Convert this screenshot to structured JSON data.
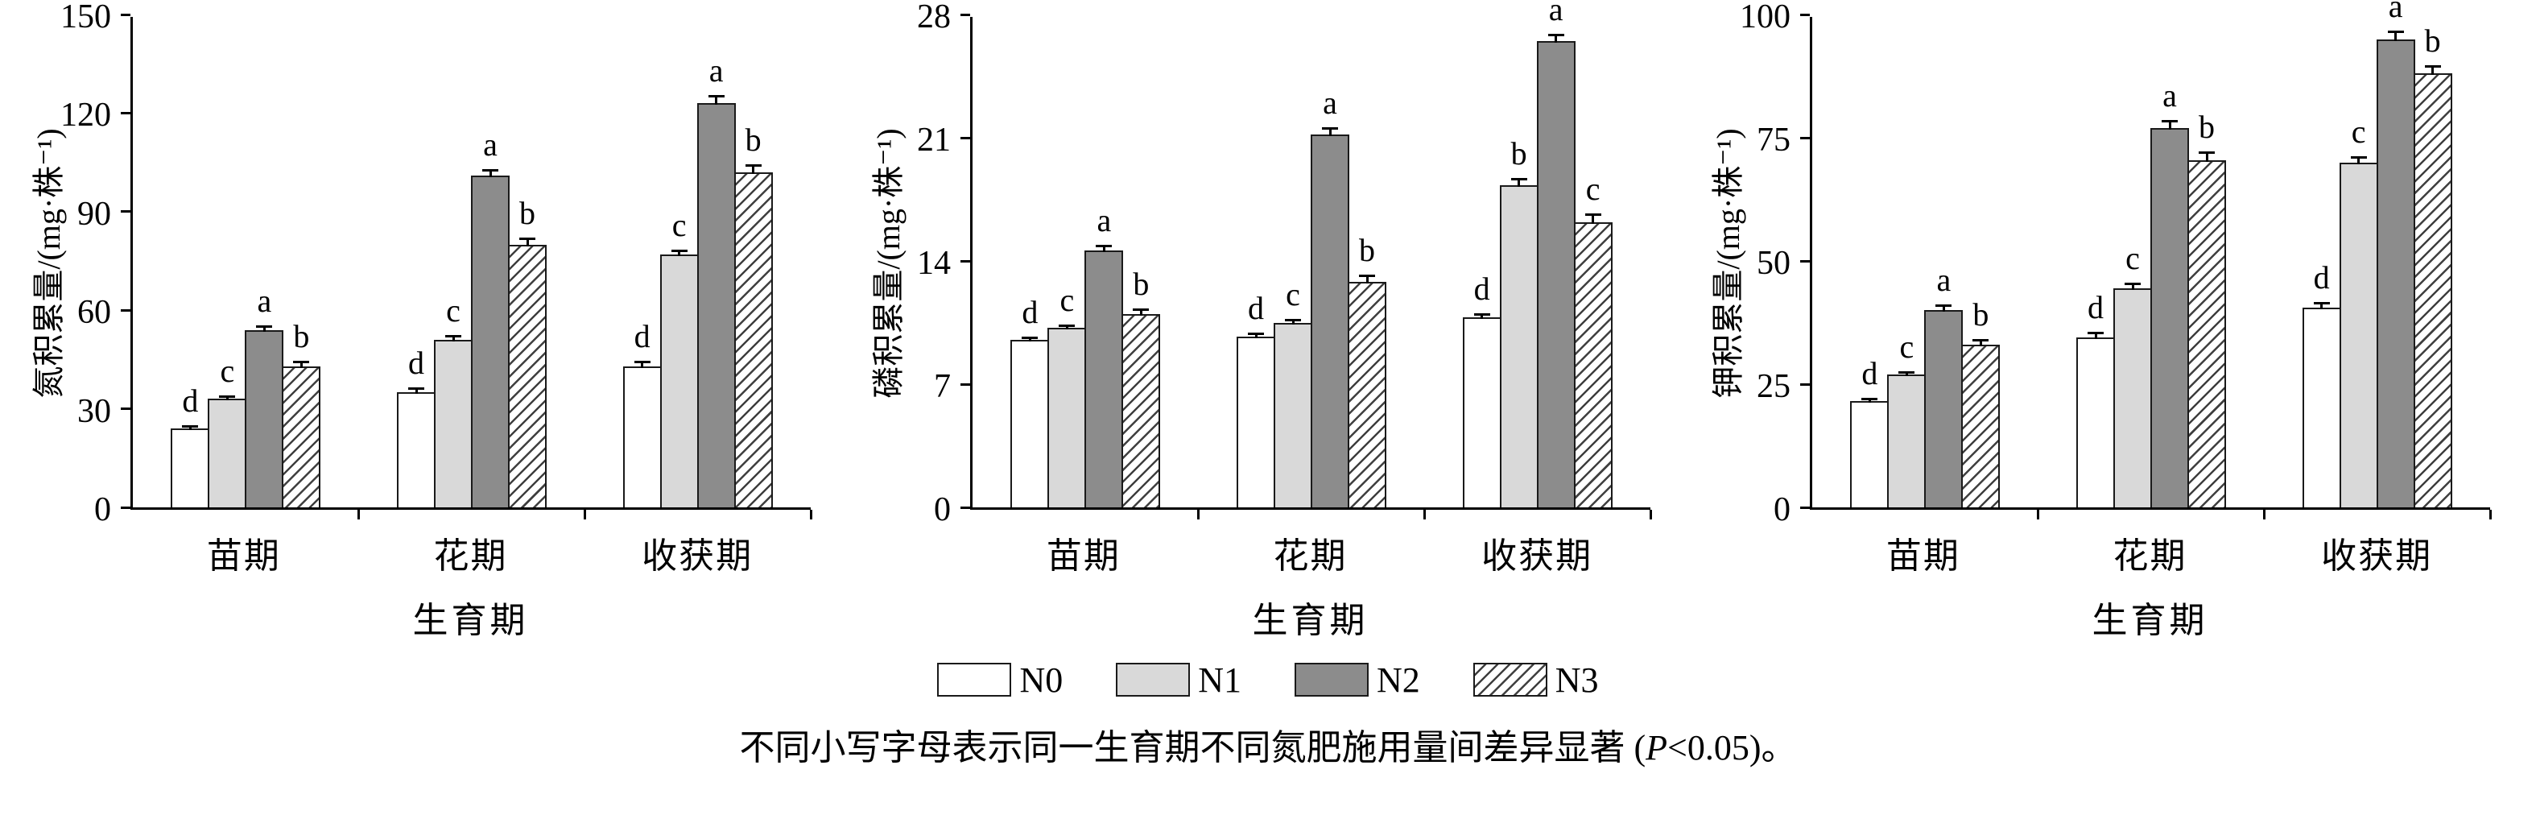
{
  "figure": {
    "caption": {
      "prefix": "不同小写字母表示同一生育期不同氮肥施用量间差异显著 (",
      "italic": "P",
      "suffix": "<0.05)。"
    }
  },
  "legend": {
    "position": "below-figure",
    "items": [
      {
        "label": "N0",
        "fill": "white"
      },
      {
        "label": "N1",
        "fill": "lightgray"
      },
      {
        "label": "N2",
        "fill": "darkgray"
      },
      {
        "label": "N3",
        "fill": "hatch"
      }
    ]
  },
  "colors": {
    "axis": "#000000",
    "bar_border": "#1a1a1a",
    "n0_fill": "#ffffff",
    "n1_fill": "#d9d9d9",
    "n2_fill": "#8c8c8c",
    "hatch_line": "#3f3f3f",
    "background": "#ffffff"
  },
  "chart_data": [
    {
      "type": "bar",
      "title": "",
      "ylabel": "氮积累量/(mg·株⁻¹)",
      "xlabel": "生育期",
      "ylim": [
        0,
        150
      ],
      "yticks": [
        0,
        30,
        60,
        90,
        120,
        150
      ],
      "categories": [
        "苗期",
        "花期",
        "收获期"
      ],
      "grid": false,
      "series": [
        {
          "name": "N0",
          "fill": "white",
          "values": [
            24,
            35,
            43
          ],
          "errors": [
            1.5,
            2.0,
            2.0
          ],
          "sig_letters": [
            "d",
            "d",
            "d"
          ]
        },
        {
          "name": "N1",
          "fill": "lightgray",
          "values": [
            33,
            51,
            77
          ],
          "errors": [
            1.5,
            2.0,
            2.0
          ],
          "sig_letters": [
            "c",
            "c",
            "c"
          ]
        },
        {
          "name": "N2",
          "fill": "darkgray",
          "values": [
            54,
            101,
            123
          ],
          "errors": [
            2.0,
            2.5,
            3.0
          ],
          "sig_letters": [
            "a",
            "a",
            "a"
          ]
        },
        {
          "name": "N3",
          "fill": "hatch",
          "values": [
            43,
            80,
            102
          ],
          "errors": [
            2.0,
            2.5,
            3.0
          ],
          "sig_letters": [
            "b",
            "b",
            "b"
          ]
        }
      ]
    },
    {
      "type": "bar",
      "title": "",
      "ylabel": "磷积累量/(mg·株⁻¹)",
      "xlabel": "生育期",
      "ylim": [
        0,
        28
      ],
      "yticks": [
        0,
        7,
        14,
        21,
        28
      ],
      "categories": [
        "苗期",
        "花期",
        "收获期"
      ],
      "grid": false,
      "series": [
        {
          "name": "N0",
          "fill": "white",
          "values": [
            9.5,
            9.7,
            10.8
          ],
          "errors": [
            0.3,
            0.3,
            0.3
          ],
          "sig_letters": [
            "d",
            "d",
            "d"
          ]
        },
        {
          "name": "N1",
          "fill": "lightgray",
          "values": [
            10.2,
            10.5,
            18.3
          ],
          "errors": [
            0.3,
            0.3,
            0.5
          ],
          "sig_letters": [
            "c",
            "c",
            "b"
          ]
        },
        {
          "name": "N2",
          "fill": "darkgray",
          "values": [
            14.6,
            21.2,
            26.5
          ],
          "errors": [
            0.4,
            0.5,
            0.5
          ],
          "sig_letters": [
            "a",
            "a",
            "a"
          ]
        },
        {
          "name": "N3",
          "fill": "hatch",
          "values": [
            11.0,
            12.8,
            16.2
          ],
          "errors": [
            0.4,
            0.5,
            0.6
          ],
          "sig_letters": [
            "b",
            "b",
            "c"
          ]
        }
      ]
    },
    {
      "type": "bar",
      "title": "",
      "ylabel": "钾积累量/(mg·株⁻¹)",
      "xlabel": "生育期",
      "ylim": [
        0,
        100
      ],
      "yticks": [
        0,
        25,
        50,
        75,
        100
      ],
      "categories": [
        "苗期",
        "花期",
        "收获期"
      ],
      "grid": false,
      "series": [
        {
          "name": "N0",
          "fill": "white",
          "values": [
            21.5,
            34.5,
            40.5
          ],
          "errors": [
            1.0,
            1.5,
            1.5
          ],
          "sig_letters": [
            "d",
            "d",
            "d"
          ]
        },
        {
          "name": "N1",
          "fill": "lightgray",
          "values": [
            27,
            44.5,
            70
          ],
          "errors": [
            1.0,
            1.5,
            1.5
          ],
          "sig_letters": [
            "c",
            "c",
            "c"
          ]
        },
        {
          "name": "N2",
          "fill": "darkgray",
          "values": [
            40,
            77,
            95
          ],
          "errors": [
            1.5,
            2.0,
            2.0
          ],
          "sig_letters": [
            "a",
            "a",
            "a"
          ]
        },
        {
          "name": "N3",
          "fill": "hatch",
          "values": [
            33,
            70.5,
            88
          ],
          "errors": [
            1.5,
            2.0,
            2.0
          ],
          "sig_letters": [
            "b",
            "b",
            "b"
          ]
        }
      ]
    }
  ]
}
